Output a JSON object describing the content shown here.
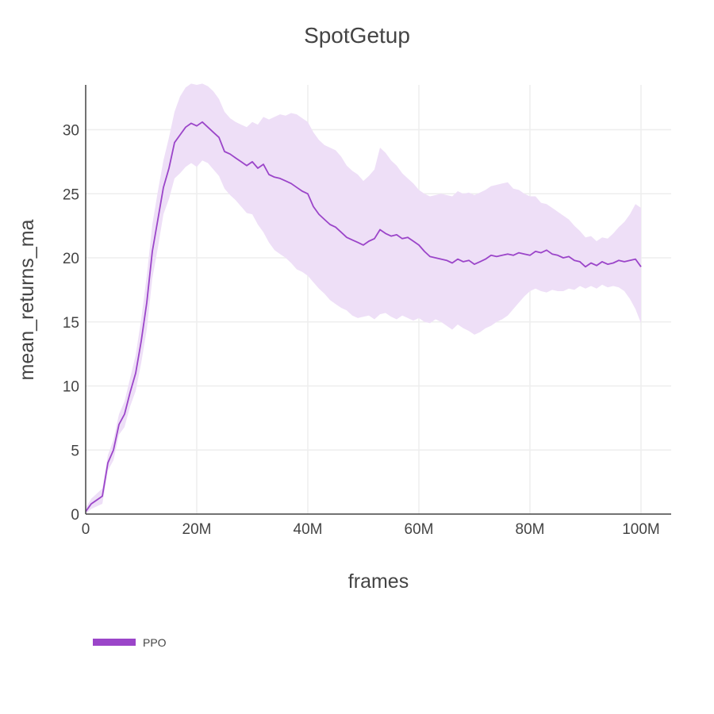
{
  "chart_data": {
    "type": "line",
    "title": "SpotGetup",
    "xlabel": "frames",
    "ylabel": "mean_returns_ma",
    "xlim": [
      0,
      105000000
    ],
    "ylim": [
      0,
      33.5
    ],
    "grid": true,
    "legend_placement": "bottom-left",
    "x_ticks": [
      {
        "value": 0,
        "label": "0"
      },
      {
        "value": 20000000,
        "label": "20M"
      },
      {
        "value": 40000000,
        "label": "40M"
      },
      {
        "value": 60000000,
        "label": "60M"
      },
      {
        "value": 80000000,
        "label": "80M"
      },
      {
        "value": 100000000,
        "label": "100M"
      }
    ],
    "y_ticks": [
      {
        "value": 0,
        "label": "0"
      },
      {
        "value": 5,
        "label": "5"
      },
      {
        "value": 10,
        "label": "10"
      },
      {
        "value": 15,
        "label": "15"
      },
      {
        "value": 20,
        "label": "20"
      },
      {
        "value": 25,
        "label": "25"
      },
      {
        "value": 30,
        "label": "30"
      }
    ],
    "series": [
      {
        "name": "PPO",
        "color": "#9b45c9",
        "band_color": "#eedff7",
        "x": [
          0,
          1000000,
          3000000,
          4000000,
          5000000,
          6000000,
          7000000,
          8000000,
          9000000,
          10000000,
          11000000,
          12000000,
          13000000,
          14000000,
          15000000,
          16000000,
          17000000,
          18000000,
          19000000,
          20000000,
          21000000,
          22000000,
          23000000,
          24000000,
          25000000,
          26000000,
          27000000,
          28000000,
          29000000,
          30000000,
          31000000,
          32000000,
          33000000,
          34000000,
          35000000,
          36000000,
          37000000,
          38000000,
          39000000,
          40000000,
          41000000,
          42000000,
          43000000,
          44000000,
          45000000,
          46000000,
          47000000,
          48000000,
          49000000,
          50000000,
          51000000,
          52000000,
          53000000,
          54000000,
          55000000,
          56000000,
          57000000,
          58000000,
          59000000,
          60000000,
          61000000,
          62000000,
          63000000,
          64000000,
          65000000,
          66000000,
          67000000,
          68000000,
          69000000,
          70000000,
          71000000,
          72000000,
          73000000,
          74000000,
          75000000,
          76000000,
          77000000,
          78000000,
          79000000,
          80000000,
          81000000,
          82000000,
          83000000,
          84000000,
          85000000,
          86000000,
          87000000,
          88000000,
          89000000,
          90000000,
          91000000,
          92000000,
          93000000,
          94000000,
          95000000,
          96000000,
          97000000,
          98000000,
          99000000,
          100000000
        ],
        "y": [
          0.2,
          0.8,
          1.4,
          4.0,
          5.0,
          7.0,
          7.8,
          9.5,
          11.0,
          13.5,
          16.5,
          20.5,
          23.0,
          25.5,
          27.0,
          29.0,
          29.6,
          30.2,
          30.5,
          30.3,
          30.6,
          30.2,
          29.8,
          29.4,
          28.3,
          28.1,
          27.8,
          27.5,
          27.2,
          27.5,
          27.0,
          27.3,
          26.5,
          26.3,
          26.2,
          26.0,
          25.8,
          25.5,
          25.2,
          25.0,
          24.0,
          23.4,
          23.0,
          22.6,
          22.4,
          22.0,
          21.6,
          21.4,
          21.2,
          21.0,
          21.3,
          21.5,
          22.2,
          21.9,
          21.7,
          21.8,
          21.5,
          21.6,
          21.3,
          21.0,
          20.5,
          20.1,
          20.0,
          19.9,
          19.8,
          19.6,
          19.9,
          19.7,
          19.8,
          19.5,
          19.7,
          19.9,
          20.2,
          20.1,
          20.2,
          20.3,
          20.2,
          20.4,
          20.3,
          20.2,
          20.5,
          20.4,
          20.6,
          20.3,
          20.2,
          20.0,
          20.1,
          19.8,
          19.7,
          19.3,
          19.6,
          19.4,
          19.7,
          19.5,
          19.6,
          19.8,
          19.7,
          19.8,
          19.9,
          19.3
        ],
        "y_upper": [
          0.5,
          1.2,
          2.0,
          4.6,
          5.8,
          7.8,
          8.8,
          10.6,
          12.4,
          15.2,
          18.6,
          22.6,
          25.2,
          27.6,
          29.4,
          31.4,
          32.6,
          33.3,
          33.6,
          33.5,
          33.6,
          33.4,
          33.0,
          32.4,
          31.4,
          30.9,
          30.6,
          30.4,
          30.2,
          30.6,
          30.4,
          31.0,
          30.8,
          31.0,
          31.2,
          31.1,
          31.3,
          31.2,
          30.9,
          30.6,
          29.8,
          29.2,
          28.8,
          28.6,
          28.4,
          27.9,
          27.2,
          26.8,
          26.5,
          26.0,
          26.4,
          26.9,
          28.6,
          28.2,
          27.6,
          27.2,
          26.6,
          26.2,
          25.8,
          25.3,
          25.0,
          24.8,
          24.9,
          25.0,
          24.9,
          24.8,
          25.2,
          25.0,
          25.1,
          24.9,
          25.1,
          25.3,
          25.6,
          25.7,
          25.8,
          25.9,
          25.4,
          25.3,
          25.0,
          24.8,
          24.8,
          24.3,
          24.2,
          23.9,
          23.6,
          23.3,
          23.0,
          22.5,
          22.1,
          21.6,
          21.7,
          21.3,
          21.6,
          21.5,
          21.9,
          22.4,
          22.8,
          23.4,
          24.2,
          23.9
        ],
        "y_lower": [
          0.0,
          0.4,
          0.8,
          3.4,
          4.2,
          6.2,
          6.8,
          8.4,
          9.6,
          11.8,
          14.4,
          18.4,
          20.8,
          23.4,
          24.6,
          26.2,
          26.6,
          27.1,
          27.4,
          27.1,
          27.6,
          27.4,
          26.9,
          26.4,
          25.4,
          24.9,
          24.5,
          24.0,
          23.5,
          23.4,
          22.6,
          22.0,
          21.2,
          20.6,
          20.3,
          20.0,
          19.6,
          19.1,
          18.9,
          18.6,
          18.1,
          17.6,
          17.2,
          16.7,
          16.4,
          16.1,
          15.9,
          15.5,
          15.3,
          15.4,
          15.5,
          15.2,
          15.6,
          15.7,
          15.4,
          15.2,
          15.5,
          15.3,
          15.1,
          15.3,
          15.0,
          14.9,
          15.2,
          15.0,
          14.7,
          14.4,
          14.8,
          14.5,
          14.3,
          14.0,
          14.2,
          14.5,
          14.7,
          15.0,
          15.2,
          15.5,
          16.0,
          16.5,
          17.0,
          17.4,
          17.6,
          17.4,
          17.3,
          17.5,
          17.4,
          17.4,
          17.6,
          17.5,
          17.8,
          17.6,
          17.8,
          17.6,
          17.9,
          17.7,
          17.8,
          17.7,
          17.4,
          16.8,
          16.0,
          14.9
        ]
      }
    ]
  }
}
